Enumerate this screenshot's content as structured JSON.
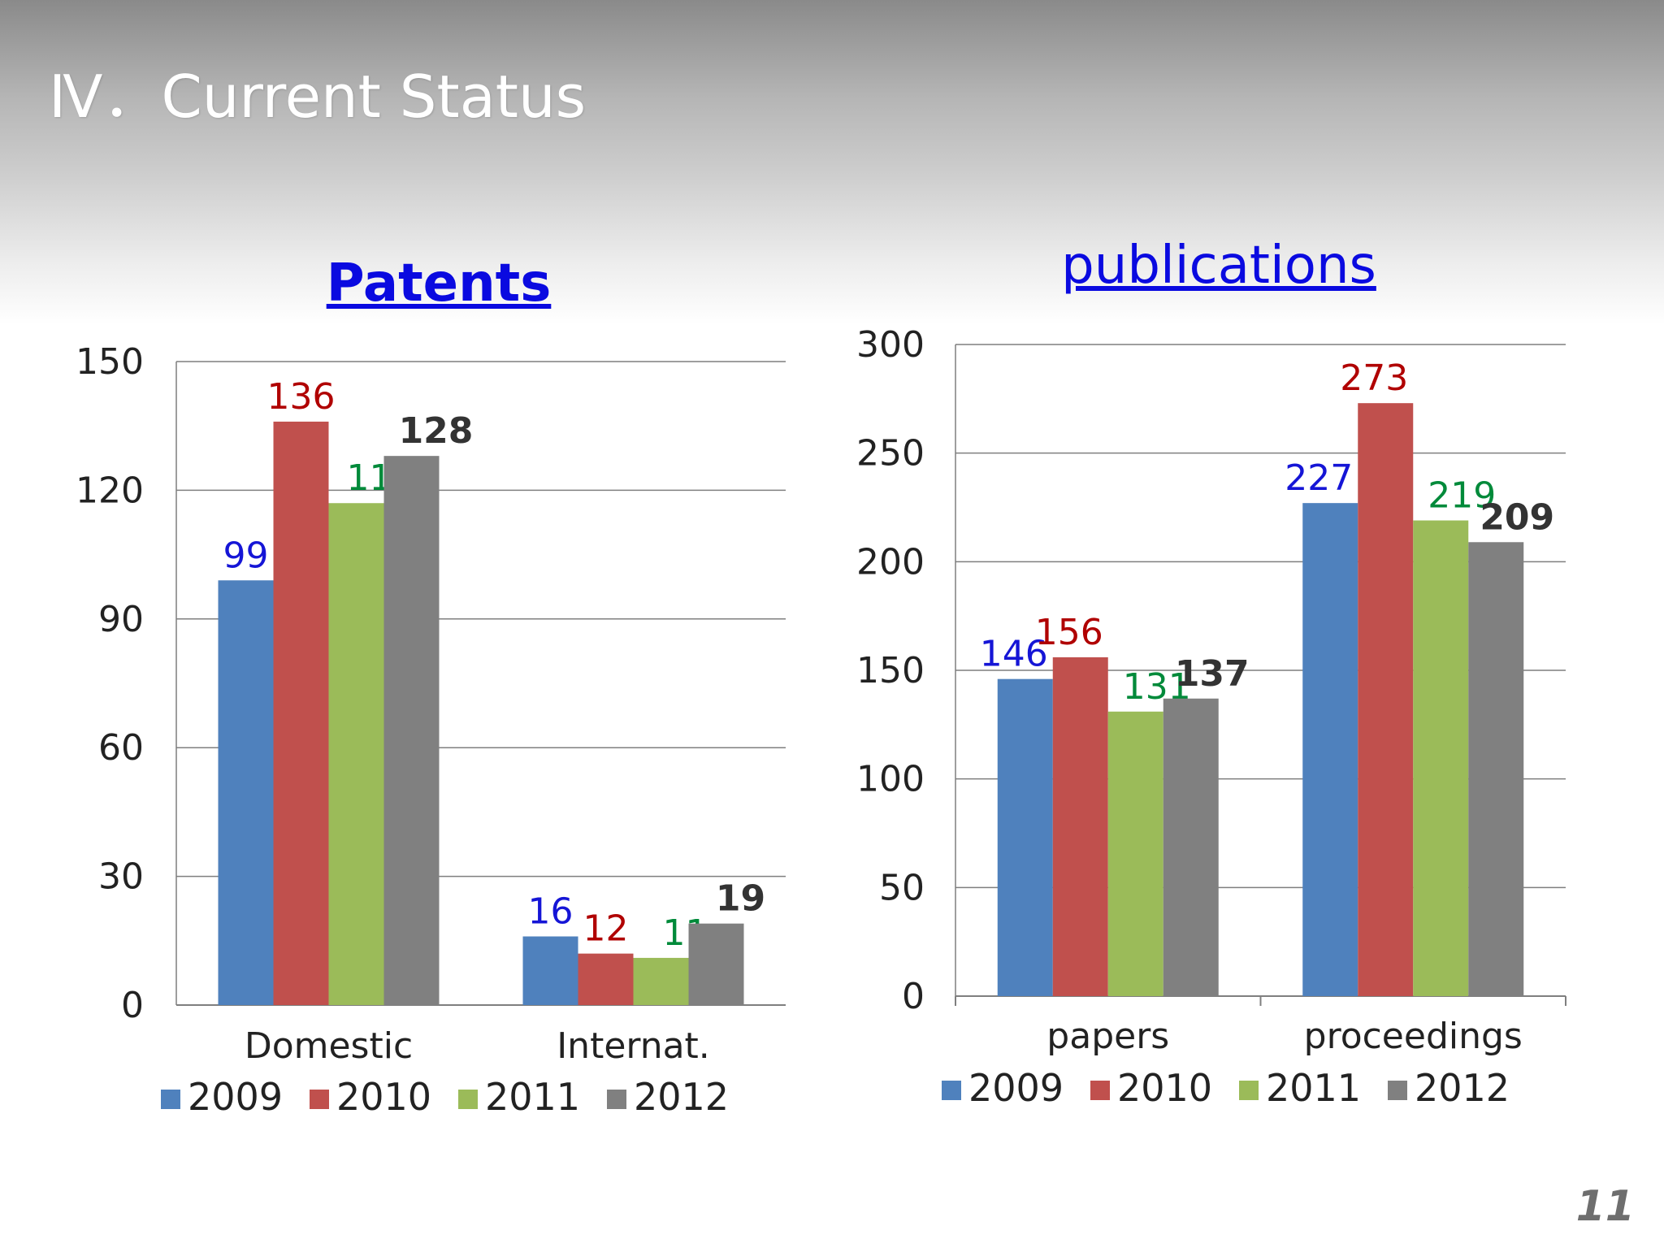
{
  "slide": {
    "title": "Ⅳ．Current Status",
    "page_number": "11"
  },
  "colors": {
    "s2009": "#4F81BD",
    "s2010": "#C0504D",
    "s2011": "#9BBB59",
    "s2012": "#808080",
    "lbl2009": "#1515d6",
    "lbl2010": "#b00000",
    "lbl2011": "#008a3a",
    "lbl2012": "#333333",
    "title_link": "#0a0ae0"
  },
  "chart_data": [
    {
      "id": "patents",
      "type": "bar",
      "title": "Patents",
      "categories": [
        "Domestic",
        "Internat."
      ],
      "series": [
        {
          "name": "2009",
          "values": [
            99,
            16
          ]
        },
        {
          "name": "2010",
          "values": [
            136,
            12
          ]
        },
        {
          "name": "2011",
          "values": [
            117,
            11
          ]
        },
        {
          "name": "2012",
          "values": [
            128,
            19
          ]
        }
      ],
      "ylim": [
        0,
        150
      ],
      "yticks": [
        "0",
        "30",
        "60",
        "90",
        "120",
        "150"
      ],
      "ytick_values": [
        0,
        30,
        60,
        90,
        120,
        150
      ],
      "xlabel": "",
      "ylabel": "",
      "grid": true,
      "legend": "bottom"
    },
    {
      "id": "publications",
      "type": "bar",
      "title": "publications",
      "categories": [
        "papers",
        "proceedings"
      ],
      "series": [
        {
          "name": "2009",
          "values": [
            146,
            227
          ]
        },
        {
          "name": "2010",
          "values": [
            156,
            273
          ]
        },
        {
          "name": "2011",
          "values": [
            131,
            219
          ]
        },
        {
          "name": "2012",
          "values": [
            137,
            209
          ]
        }
      ],
      "ylim": [
        0,
        300
      ],
      "yticks": [
        "0",
        "50",
        "100",
        "150",
        "200",
        "250",
        "300"
      ],
      "ytick_values": [
        0,
        50,
        100,
        150,
        200,
        250,
        300
      ],
      "xlabel": "",
      "ylabel": "",
      "grid": true,
      "legend": "bottom"
    }
  ]
}
